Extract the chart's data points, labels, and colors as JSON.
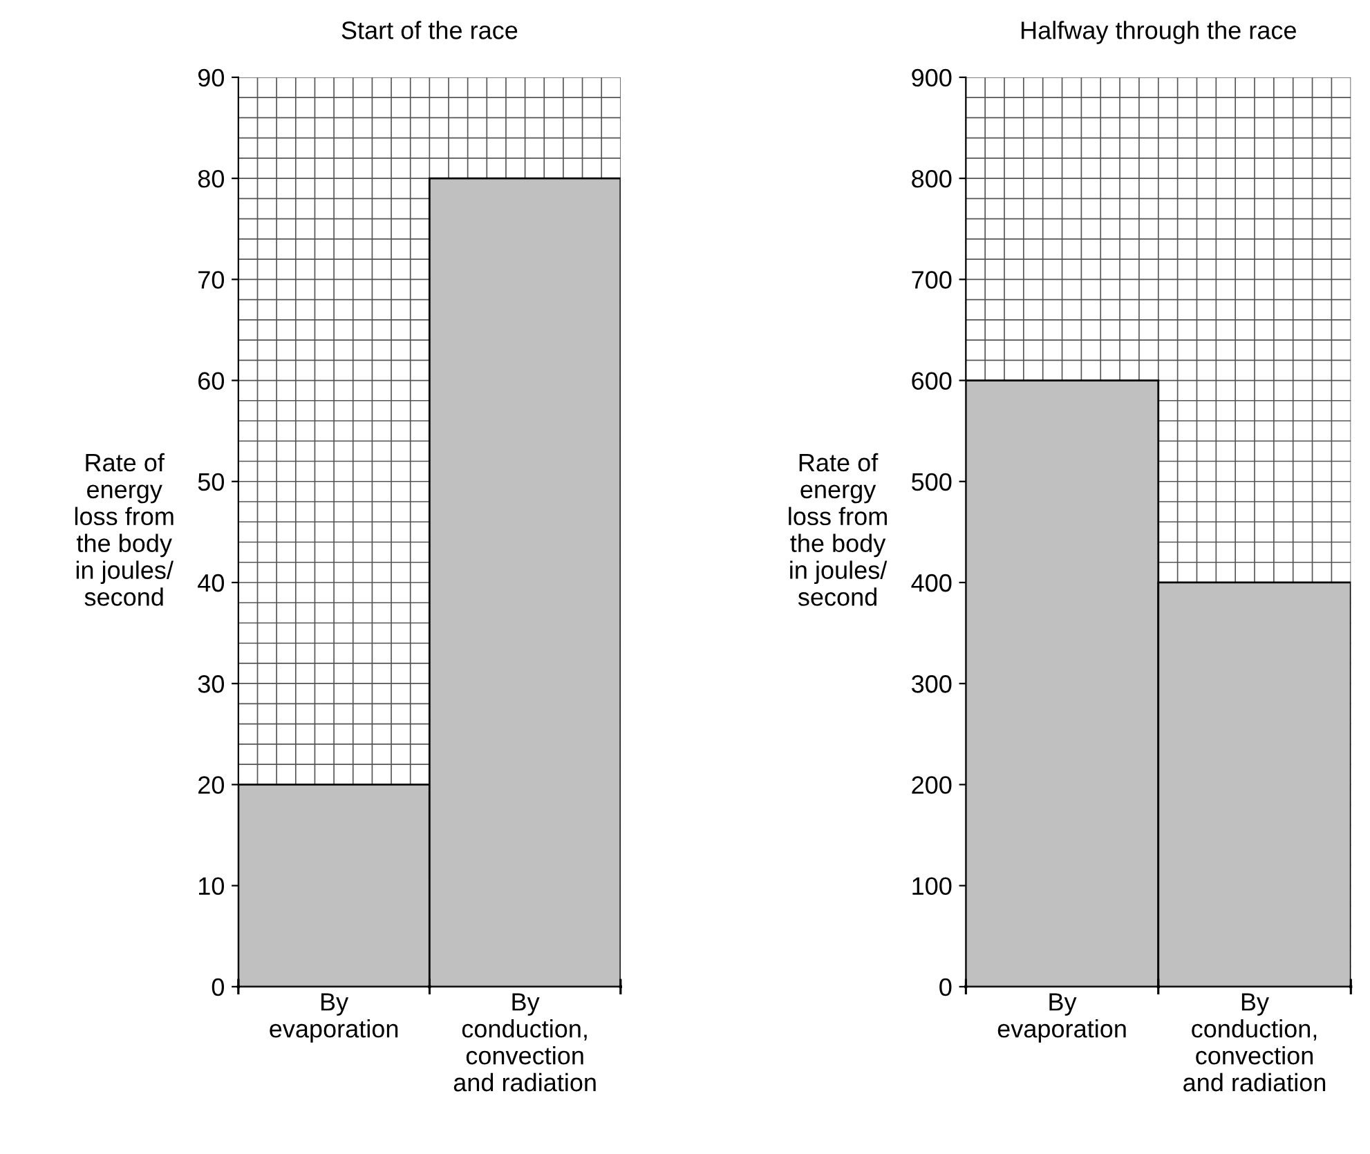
{
  "chart_data": [
    {
      "type": "bar",
      "title": "Start of the race",
      "ylabel": "Rate of\nenergy\nloss from\nthe body\nin joules/\nsecond",
      "categories": [
        "By\nevaporation",
        "By\nconduction,\nconvection\nand radiation"
      ],
      "values": [
        20,
        80
      ],
      "color": "#c0c0c0",
      "ylim": [
        0,
        90
      ],
      "yticks": [
        0,
        10,
        20,
        30,
        40,
        50,
        60,
        70,
        80,
        90
      ],
      "grid": true
    },
    {
      "type": "bar",
      "title": "Halfway through the race",
      "ylabel": "Rate of\nenergy\nloss from\nthe body\nin joules/\nsecond",
      "categories": [
        "By\nevaporation",
        "By\nconduction,\nconvection\nand radiation"
      ],
      "values": [
        600,
        400
      ],
      "color": "#c0c0c0",
      "ylim": [
        0,
        900
      ],
      "yticks": [
        0,
        100,
        200,
        300,
        400,
        500,
        600,
        700,
        800,
        900
      ],
      "grid": true
    }
  ]
}
